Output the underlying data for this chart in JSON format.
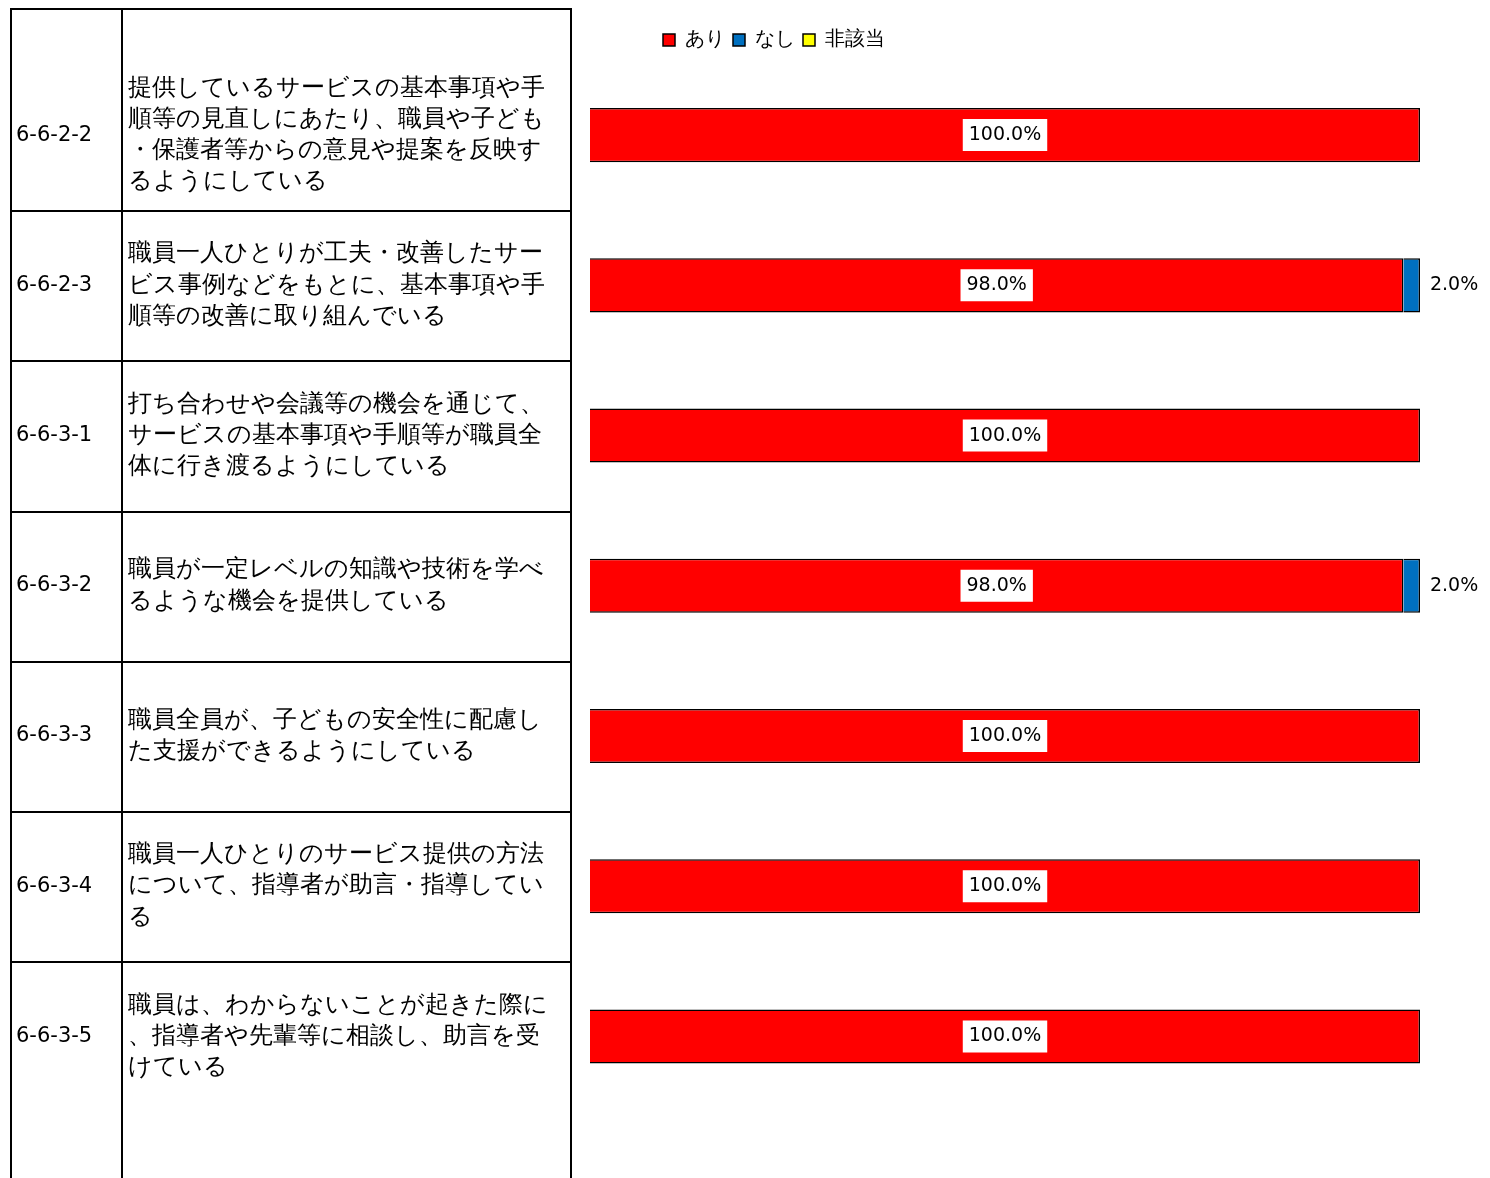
{
  "chart_data": {
    "type": "bar",
    "orientation": "horizontal",
    "stacked": true,
    "categories": [
      "提供しているサービスの基本事項や手順等の見直しにあたり、職員や子ども・保護者等からの意見や提案を反映するようにしている",
      "職員一人ひとりが工夫・改善したサービス事例などをもとに、基本事項や手順等の改善に取り組んでいる",
      "打ち合わせや会議等の機会を通じて、サービスの基本事項や手順等が職員全体に行き渡るようにしている",
      "職員が一定レベルの知識や技術を学べるような機会を提供している",
      "職員全員が、子どもの安全性に配慮した支援ができるようにしている",
      "職員一人ひとりのサービス提供の方法について、指導者が助言・指導している",
      "職員は、わからないことが起きた際に、指導者や先輩等に相談し、助言を受けている"
    ],
    "xlim": [
      0,
      100
    ],
    "tick_labels": "y",
    "legend": "top",
    "series": [
      {
        "name": "あり",
        "color": "#ff0000",
        "values": [
          100,
          98,
          100,
          98,
          100,
          100,
          100
        ],
        "value_labels": [
          "100.0%",
          "98.0%",
          "100.0%",
          "98.0%",
          "100.0%",
          "100.0%",
          "100.0%"
        ]
      },
      {
        "name": "なし",
        "color": "#0070c0",
        "values": [
          0,
          2,
          0,
          2,
          0,
          0,
          0
        ],
        "value_labels": [
          null,
          "2.0%",
          null,
          "2.0%",
          null,
          null,
          null
        ]
      },
      {
        "name": "非該当",
        "color": "#ffff00",
        "values": [
          0,
          0,
          0,
          0,
          0,
          0,
          0
        ],
        "value_labels": [
          null,
          null,
          null,
          null,
          null,
          null,
          null
        ]
      }
    ],
    "annotations": [
      "6-6-2-2",
      "6-6-2-3",
      "6-6-3-1",
      "6-6-3-2",
      "6-6-3-3",
      "6-6-3-4",
      "6-6-3-5"
    ]
  }
}
